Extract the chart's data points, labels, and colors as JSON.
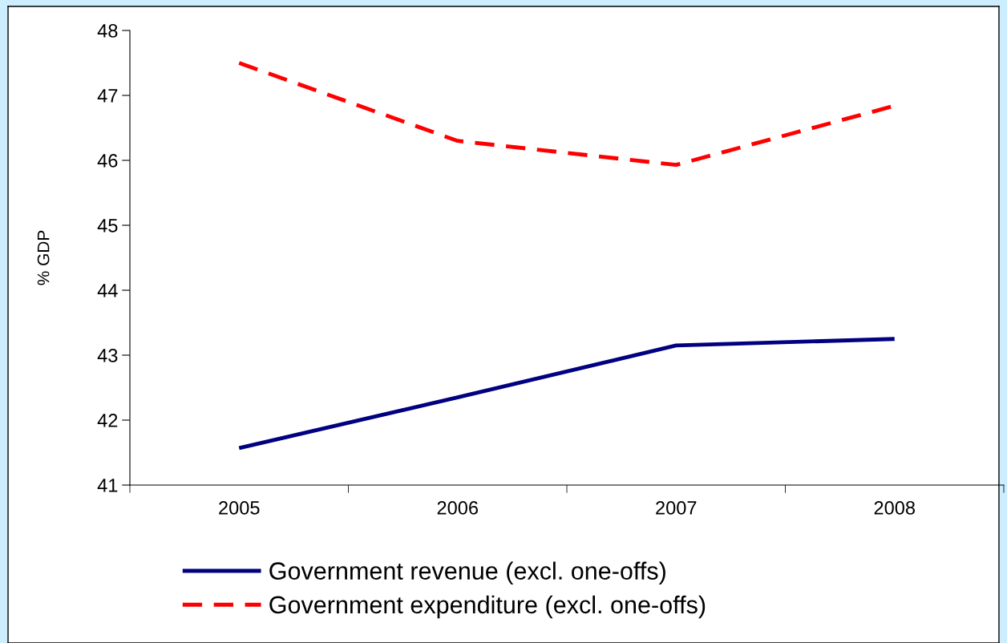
{
  "chart_data": {
    "type": "line",
    "ylabel": "% GDP",
    "categories": [
      "2005",
      "2006",
      "2007",
      "2008"
    ],
    "series": [
      {
        "name": "Government revenue (excl. one-offs)",
        "color": "#000080",
        "line_style": "solid",
        "values": [
          41.57,
          42.35,
          43.15,
          43.25
        ]
      },
      {
        "name": "Government expenditure (excl. one-offs)",
        "color": "#ff0000",
        "line_style": "dashed",
        "values": [
          47.5,
          46.3,
          45.93,
          46.84
        ]
      }
    ],
    "ylim": [
      41,
      48
    ],
    "yticks": [
      41,
      42,
      43,
      44,
      45,
      46,
      47,
      48
    ],
    "grid": false,
    "legend": "bottom",
    "marker": "none"
  }
}
